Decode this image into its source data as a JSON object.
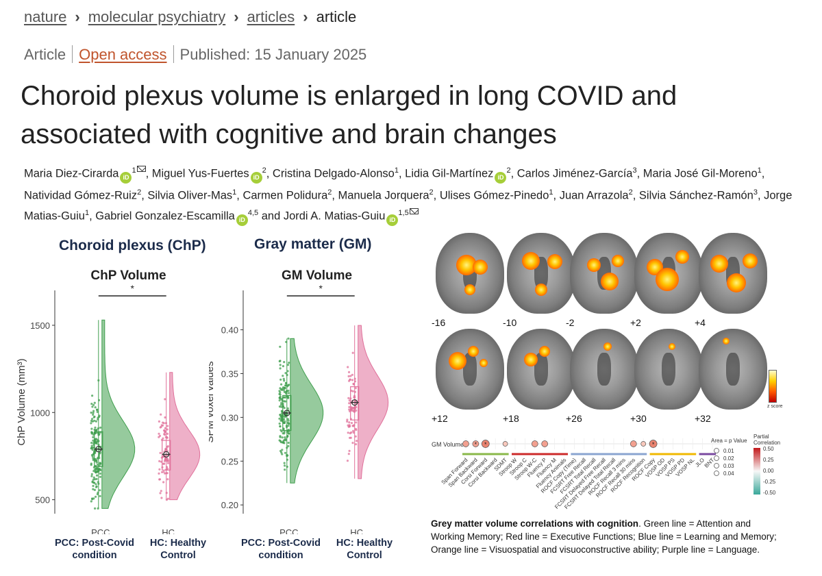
{
  "breadcrumb": {
    "items": [
      "nature",
      "molecular psychiatry",
      "articles"
    ],
    "current": "article"
  },
  "meta": {
    "type": "Article",
    "access": "Open access",
    "published": "Published: 15 January 2025"
  },
  "title": "Choroid plexus volume is enlarged in long COVID and associated with cognitive and brain changes",
  "authors": [
    {
      "name": "Maria Diez-Cirarda",
      "orcid": true,
      "aff": "1",
      "email": true
    },
    {
      "name": "Miguel Yus-Fuertes",
      "orcid": true,
      "aff": "2"
    },
    {
      "name": "Cristina Delgado-Alonso",
      "aff": "1"
    },
    {
      "name": "Lidia Gil-Martínez",
      "orcid": true,
      "aff": "2"
    },
    {
      "name": "Carlos Jiménez-García",
      "aff": "3"
    },
    {
      "name": "Maria José Gil-Moreno",
      "aff": "1"
    },
    {
      "name": "Natividad Gómez-Ruiz",
      "aff": "2"
    },
    {
      "name": "Silvia Oliver-Mas",
      "aff": "1"
    },
    {
      "name": "Carmen Polidura",
      "aff": "2"
    },
    {
      "name": "Manuela Jorquera",
      "aff": "2"
    },
    {
      "name": "Ulises Gómez-Pinedo",
      "aff": "1"
    },
    {
      "name": "Juan Arrazola",
      "aff": "2"
    },
    {
      "name": "Silvia Sánchez-Ramón",
      "aff": "3"
    },
    {
      "name": "Jorge Matias-Guiu",
      "aff": "1"
    },
    {
      "name": "Gabriel Gonzalez-Escamilla",
      "orcid": true,
      "aff": "4,5"
    },
    {
      "name": "Jordi A. Matias-Guiu",
      "orcid": true,
      "aff": "1,5",
      "email": true,
      "prefix": "and "
    }
  ],
  "panels": {
    "chp_title": "Choroid plexus (ChP)",
    "gm_title": "Gray matter (GM)",
    "pcc_abbr": "PCC: Post-Covid condition",
    "hc_abbr": "HC: Healthy Control"
  },
  "chart_data": [
    {
      "type": "raincloud",
      "title": "ChP Volume",
      "ylabel": "ChP Volume (mm³)",
      "categories": [
        "PCC",
        "HC"
      ],
      "yticks": [
        500,
        1000,
        1500
      ],
      "ylim": [
        420,
        1700
      ],
      "significance": "*",
      "series": [
        {
          "name": "PCC",
          "color": "#3f9e4d",
          "median": 790,
          "q1": 690,
          "q3": 890,
          "min": 450,
          "max": 1530
        },
        {
          "name": "HC",
          "color": "#e0709a",
          "median": 760,
          "q1": 670,
          "q3": 840,
          "min": 500,
          "max": 1230
        }
      ]
    },
    {
      "type": "raincloud",
      "title": "GM Volume",
      "ylabel": "SPM voxel values",
      "categories": [
        "PCC",
        "HC"
      ],
      "yticks": [
        0.2,
        0.25,
        0.3,
        0.35,
        0.4
      ],
      "ylim": [
        0.19,
        0.445
      ],
      "significance": "*",
      "series": [
        {
          "name": "PCC",
          "color": "#3f9e4d",
          "median": 0.305,
          "q1": 0.285,
          "q3": 0.325,
          "min": 0.225,
          "max": 0.39
        },
        {
          "name": "HC",
          "color": "#e0709a",
          "median": 0.317,
          "q1": 0.297,
          "q3": 0.335,
          "min": 0.23,
          "max": 0.405
        }
      ]
    },
    {
      "type": "heatmap",
      "row_label": "GM Volume",
      "columns": [
        "Span Forward",
        "Span Backward",
        "Corsi Forward",
        "Corsi Backward",
        "SDMT",
        "Stroop W",
        "Stroop C",
        "Stroop W-C",
        "Fluency P",
        "Fluency M",
        "Fluency Animals",
        "ROCF Copy (Time)",
        "FCSRT Free Recall",
        "FCSRT Total Recall",
        "FCSRT Delayed Free Recall",
        "FCSRT Delayed Total Recall",
        "ROCF Recall 3 mins",
        "ROCF Recall 30 mins",
        "ROCF Recognition",
        "ROCF Copy",
        "VOSP OD",
        "VOSP PS",
        "VOSP PD",
        "VOSP NL",
        "JLO",
        "BNT"
      ],
      "domains": [
        {
          "name": "Attention and Working Memory",
          "color": "#8ab84a",
          "span": [
            0,
            4
          ]
        },
        {
          "name": "Executive Functions",
          "color": "#cc2a2a",
          "span": [
            5,
            10
          ]
        },
        {
          "name": "Learning and Memory",
          "color": "#8aa4d0",
          "span": [
            11,
            18
          ]
        },
        {
          "name": "Visuospatial",
          "color": "#f0b800",
          "span": [
            19,
            23
          ]
        },
        {
          "name": "Language",
          "color": "#7a4aa0",
          "span": [
            24,
            25
          ]
        }
      ],
      "cells": [
        {
          "col": 0,
          "size": 0.02,
          "color": "#f2a090",
          "star": false
        },
        {
          "col": 1,
          "size": 0.02,
          "color": "#f2a090",
          "star": true
        },
        {
          "col": 2,
          "size": 0.03,
          "color": "#ea8470",
          "star": true
        },
        {
          "col": 4,
          "size": 0.01,
          "color": "#f8c8bc",
          "star": false
        },
        {
          "col": 7,
          "size": 0.02,
          "color": "#f2a090",
          "star": false
        },
        {
          "col": 8,
          "size": 0.02,
          "color": "#f2a090",
          "star": false
        },
        {
          "col": 17,
          "size": 0.02,
          "color": "#f2a090",
          "star": false
        },
        {
          "col": 18,
          "size": 0.01,
          "color": "#f8c8bc",
          "star": false
        },
        {
          "col": 19,
          "size": 0.03,
          "color": "#ea8470",
          "star": true
        }
      ],
      "legend_size": {
        "title": "Area = p Value",
        "values": [
          "0.01",
          "0.02",
          "0.03",
          "0.04"
        ]
      },
      "legend_color": {
        "title": "Partial Correlation",
        "values": [
          "0.50",
          "0.25",
          "0.00",
          "-0.25",
          "-0.50"
        ]
      }
    }
  ],
  "brain_slices": [
    "-16",
    "-10",
    "-2",
    "+2",
    "+4",
    "+12",
    "+18",
    "+26",
    "+30",
    "+32"
  ],
  "colorbar_label": "z score",
  "caption": {
    "bold": "Grey matter volume correlations with cognition",
    "text": ". Green line = Attention and Working Memory; Red line = Executive Functions; Blue line = Learning and Memory; Orange line = Visuospatial and visuoconstructive ability; Purple line = Language."
  }
}
